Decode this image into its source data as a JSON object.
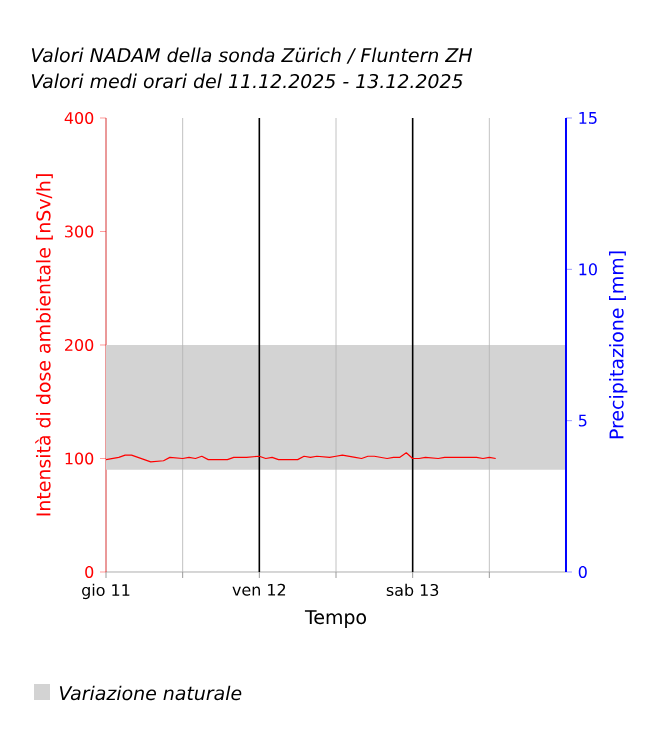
{
  "chart_data": {
    "type": "line",
    "title": "Valori NADAM della sonda Zürich / Fluntern ZH",
    "subtitle": "Valori medi orari del 11.12.2025 - 13.12.2025",
    "xlabel": "Tempo",
    "ylabel": "Intensità di dose ambientale [nSv/h]",
    "y2label": "Precipitazione [mm]",
    "x": [
      "2025-12-11T00:00",
      "2025-12-11T02:00",
      "2025-12-11T03:00",
      "2025-12-11T04:00",
      "2025-12-11T06:00",
      "2025-12-11T07:00",
      "2025-12-11T09:00",
      "2025-12-11T10:00",
      "2025-12-11T12:00",
      "2025-12-11T13:00",
      "2025-12-11T14:00",
      "2025-12-11T15:00",
      "2025-12-11T16:00",
      "2025-12-11T18:00",
      "2025-12-11T19:00",
      "2025-12-11T20:00",
      "2025-12-11T22:00",
      "2025-12-12T00:00",
      "2025-12-12T01:00",
      "2025-12-12T02:00",
      "2025-12-12T03:00",
      "2025-12-12T06:00",
      "2025-12-12T07:00",
      "2025-12-12T08:00",
      "2025-12-12T09:00",
      "2025-12-12T11:00",
      "2025-12-12T12:00",
      "2025-12-12T13:00",
      "2025-12-12T15:00",
      "2025-12-12T16:00",
      "2025-12-12T17:00",
      "2025-12-12T18:00",
      "2025-12-12T20:00",
      "2025-12-12T21:00",
      "2025-12-12T22:00",
      "2025-12-12T23:00",
      "2025-12-13T00:00",
      "2025-12-13T01:00",
      "2025-12-13T02:00",
      "2025-12-13T04:00",
      "2025-12-13T05:00",
      "2025-12-13T07:00",
      "2025-12-13T10:00",
      "2025-12-13T11:00",
      "2025-12-13T12:00",
      "2025-12-13T13:00"
    ],
    "series": [
      {
        "color": "#ff0000",
        "values": [
          99,
          101,
          103,
          103,
          99,
          97,
          98,
          101,
          100,
          101,
          100,
          102,
          99,
          99,
          99,
          101,
          101,
          102,
          100,
          101,
          99,
          99,
          102,
          101,
          102,
          101,
          102,
          103,
          101,
          100,
          102,
          102,
          100,
          101,
          101,
          105,
          100,
          100,
          101,
          100,
          101,
          101,
          101,
          100,
          101,
          100
        ]
      }
    ],
    "xlim": [
      "2025-12-11T00:00",
      "2025-12-14T00:00"
    ],
    "xticks": [
      {
        "value": "2025-12-11T00:00",
        "label": "gio 11"
      },
      {
        "value": "2025-12-11T12:00",
        "label": null
      },
      {
        "value": "2025-12-12T00:00",
        "label": "ven 12"
      },
      {
        "value": "2025-12-12T12:00",
        "label": null
      },
      {
        "value": "2025-12-13T00:00",
        "label": "sab 13"
      },
      {
        "value": "2025-12-13T12:00",
        "label": null
      }
    ],
    "ylim": [
      0,
      400
    ],
    "yticks": [
      0,
      100,
      200,
      300,
      400
    ],
    "y2lim": [
      0,
      15
    ],
    "y2ticks": [
      0,
      5,
      10,
      15
    ],
    "bands": [
      {
        "axis": "y",
        "from": 90,
        "to": 200,
        "label": "Variazione naturale",
        "color": "#d3d3d3"
      }
    ],
    "grid": "x",
    "legend": "bottom",
    "marker": "none",
    "line_style": "solid"
  }
}
